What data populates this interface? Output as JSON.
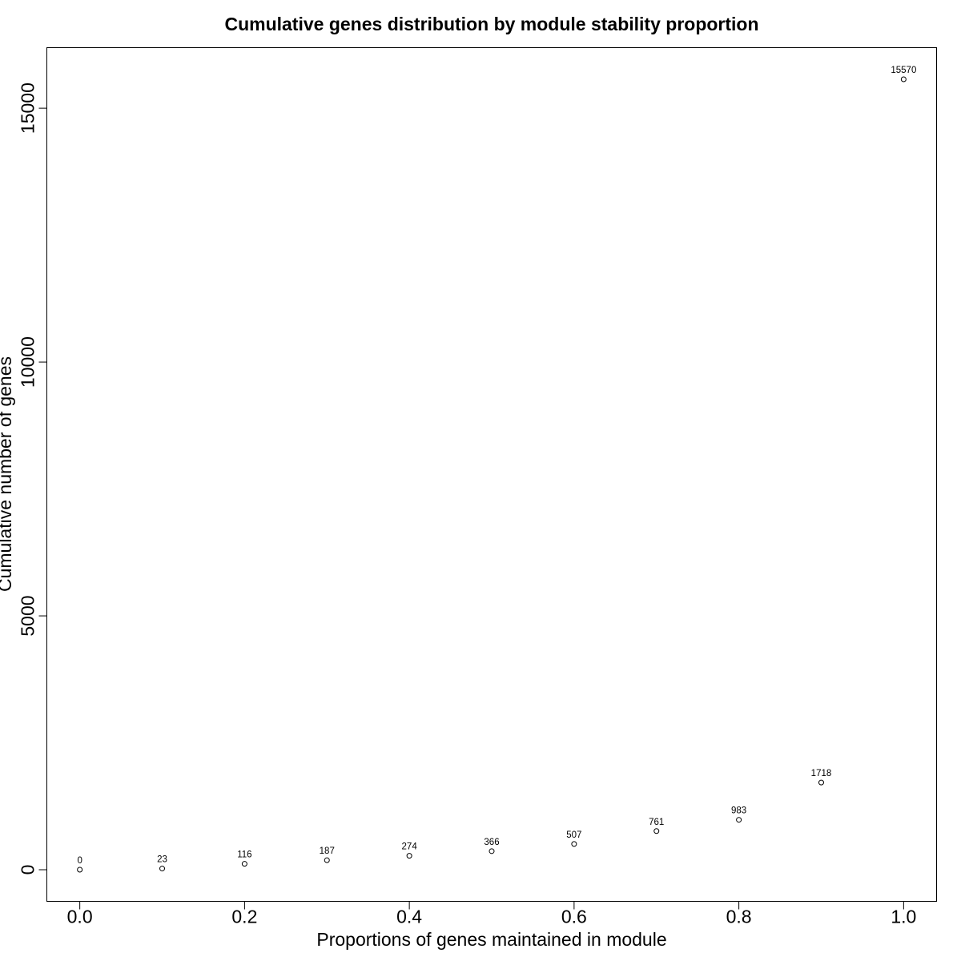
{
  "chart_data": {
    "type": "scatter",
    "title": "Cumulative genes distribution by module stability proportion",
    "xlabel": "Proportions of genes maintained in module",
    "ylabel": "Cumulative number of genes",
    "x": [
      0.0,
      0.1,
      0.2,
      0.3,
      0.4,
      0.5,
      0.6,
      0.7,
      0.8,
      0.9,
      1.0
    ],
    "y": [
      0,
      23,
      116,
      187,
      274,
      366,
      507,
      761,
      983,
      1718,
      15570
    ],
    "point_labels": [
      "0",
      "23",
      "116",
      "187",
      "274",
      "366",
      "507",
      "761",
      "983",
      "1718",
      "15570"
    ],
    "xlim": [
      -0.04,
      1.04
    ],
    "ylim": [
      -622.8,
      16192.8
    ],
    "x_ticks": [
      0.0,
      0.2,
      0.4,
      0.6,
      0.8,
      1.0
    ],
    "x_tick_labels": [
      "0.0",
      "0.2",
      "0.4",
      "0.6",
      "0.8",
      "1.0"
    ],
    "y_ticks": [
      0,
      5000,
      10000,
      15000
    ],
    "y_tick_labels": [
      "0",
      "5000",
      "10000",
      "15000"
    ],
    "point_shape": "open-circle",
    "grid": false,
    "legend": "none"
  }
}
